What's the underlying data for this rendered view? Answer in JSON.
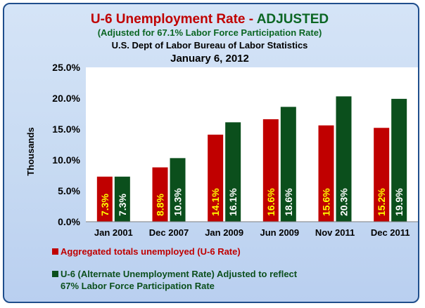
{
  "chart_data": {
    "type": "bar",
    "title_part1": "U-6 Unemployment Rate - ",
    "title_part2": "ADJUSTED",
    "subtitle": "(Adjusted for 67.1% Labor Force Participation Rate)",
    "source": "U.S. Dept of Labor Bureau of Labor Statistics",
    "date": "January 6, 2012",
    "ylabel": "Thousands",
    "xlabel": "",
    "ylim": [
      0,
      25
    ],
    "yticks": [
      "0.0%",
      "5.0%",
      "10.0%",
      "15.0%",
      "20.0%",
      "25.0%"
    ],
    "grid": false,
    "legend_position": "bottom-left",
    "categories": [
      "Jan 2001",
      "Dec 2007",
      "Jan 2009",
      "Jun 2009",
      "Nov 2011",
      "Dec 2011"
    ],
    "series": [
      {
        "name": "Aggregated totals unemployed (U-6 Rate)",
        "color": "#c00000",
        "label_color": "#ffff00",
        "values": [
          7.3,
          8.8,
          14.1,
          16.6,
          15.6,
          15.2
        ],
        "labels": [
          "7.3%",
          "8.8%",
          "14.1%",
          "16.6%",
          "15.6%",
          "15.2%"
        ]
      },
      {
        "name_line1": "U-6 (Alternate Unemployment Rate) Adjusted to reflect",
        "name_line2": "67% Labor Force Participation Rate",
        "color": "#0b4f1c",
        "label_color": "#ffffff",
        "values": [
          7.3,
          10.3,
          16.1,
          18.6,
          20.3,
          19.9
        ],
        "labels": [
          "7.3%",
          "10.3%",
          "16.1%",
          "18.6%",
          "20.3%",
          "19.9%"
        ]
      }
    ],
    "colors": {
      "title_red": "#c00000",
      "title_green": "#0b6623",
      "plot_bg": "#ffffff",
      "frame_border": "#1f4e8c"
    }
  }
}
